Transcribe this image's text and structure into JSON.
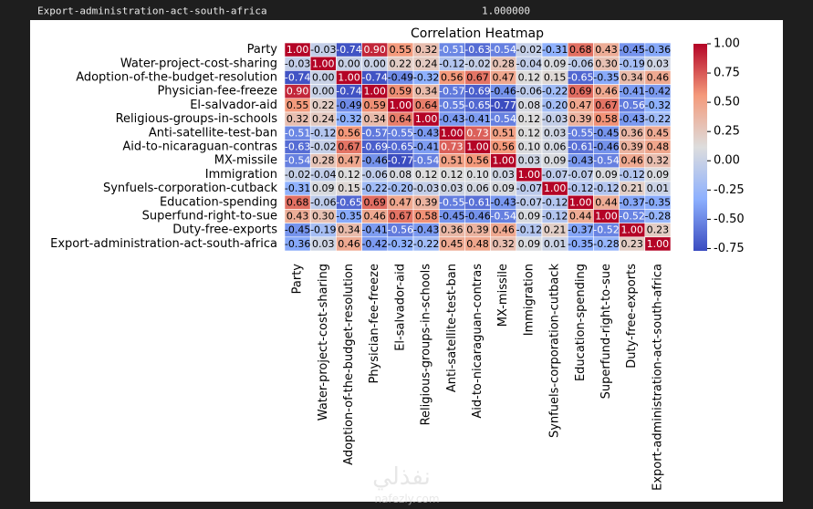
{
  "output_line": {
    "label": "Export-administration-act-south-africa",
    "value": "1.000000"
  },
  "watermark": {
    "arabic": "نفذلي",
    "latin": "nafezly.com"
  },
  "chart_data": {
    "type": "heatmap",
    "title": "Correlation Heatmap",
    "colormap": "coolwarm",
    "categories": [
      "Party",
      "Water-project-cost-sharing",
      "Adoption-of-the-budget-resolution",
      "Physician-fee-freeze",
      "El-salvador-aid",
      "Religious-groups-in-schools",
      "Anti-satellite-test-ban",
      "Aid-to-nicaraguan-contras",
      "MX-missile",
      "Immigration",
      "Synfuels-corporation-cutback",
      "Education-spending",
      "Superfund-right-to-sue",
      "Duty-free-exports",
      "Export-administration-act-south-africa"
    ],
    "values": [
      [
        1,
        -0.03,
        -0.74,
        0.9,
        0.55,
        0.32,
        -0.51,
        -0.63,
        -0.54,
        -0.02,
        -0.31,
        0.68,
        0.43,
        -0.45,
        -0.36
      ],
      [
        -0.03,
        1,
        0,
        0,
        0.22,
        0.24,
        -0.12,
        -0.02,
        0.28,
        -0.04,
        0.09,
        -0.06,
        0.3,
        -0.19,
        0.03
      ],
      [
        -0.74,
        0,
        1,
        -0.74,
        -0.49,
        -0.32,
        0.56,
        0.67,
        0.47,
        0.12,
        0.15,
        -0.65,
        -0.35,
        0.34,
        0.46
      ],
      [
        0.9,
        0,
        -0.74,
        1,
        0.59,
        0.34,
        -0.57,
        -0.69,
        -0.46,
        -0.06,
        -0.22,
        0.69,
        0.46,
        -0.41,
        -0.42
      ],
      [
        0.55,
        0.22,
        -0.49,
        0.59,
        1,
        0.64,
        -0.55,
        -0.65,
        -0.77,
        0.08,
        -0.2,
        0.47,
        0.67,
        -0.56,
        -0.32
      ],
      [
        0.32,
        0.24,
        -0.32,
        0.34,
        0.64,
        1,
        -0.43,
        -0.41,
        -0.54,
        0.12,
        -0.03,
        0.39,
        0.58,
        -0.43,
        -0.22
      ],
      [
        -0.51,
        -0.12,
        0.56,
        -0.57,
        -0.55,
        -0.43,
        1,
        0.73,
        0.51,
        0.12,
        0.03,
        -0.55,
        -0.45,
        0.36,
        0.45
      ],
      [
        -0.63,
        -0.02,
        0.67,
        -0.69,
        -0.65,
        -0.41,
        0.73,
        1,
        0.56,
        0.1,
        0.06,
        -0.61,
        -0.46,
        0.39,
        0.48
      ],
      [
        -0.54,
        0.28,
        0.47,
        -0.46,
        -0.77,
        -0.54,
        0.51,
        0.56,
        1,
        0.03,
        0.09,
        -0.43,
        -0.54,
        0.46,
        0.32
      ],
      [
        -0.02,
        -0.04,
        0.12,
        -0.06,
        0.08,
        0.12,
        0.12,
        0.1,
        0.03,
        1,
        -0.07,
        -0.07,
        0.09,
        -0.12,
        0.09
      ],
      [
        -0.31,
        0.09,
        0.15,
        -0.22,
        -0.2,
        -0.03,
        0.03,
        0.06,
        0.09,
        -0.07,
        1,
        -0.12,
        -0.12,
        0.21,
        0.01
      ],
      [
        0.68,
        -0.06,
        -0.65,
        0.69,
        0.47,
        0.39,
        -0.55,
        -0.61,
        -0.43,
        -0.07,
        -0.12,
        1,
        0.44,
        -0.37,
        -0.35
      ],
      [
        0.43,
        0.3,
        -0.35,
        0.46,
        0.67,
        0.58,
        -0.45,
        -0.46,
        -0.54,
        0.09,
        -0.12,
        0.44,
        1,
        -0.52,
        -0.28
      ],
      [
        -0.45,
        -0.19,
        0.34,
        -0.41,
        -0.56,
        -0.43,
        0.36,
        0.39,
        0.46,
        -0.12,
        0.21,
        -0.37,
        -0.52,
        1,
        0.23
      ],
      [
        -0.36,
        0.03,
        0.46,
        -0.42,
        -0.32,
        -0.22,
        0.45,
        0.48,
        0.32,
        0.09,
        0.01,
        -0.35,
        -0.28,
        0.23,
        1
      ]
    ],
    "value_labels": [
      [
        "1.00",
        "-0.03",
        "-0.74",
        "0.90",
        "0.55",
        "0.32",
        "-0.51",
        "-0.63",
        "-0.54",
        "-0.02",
        "-0.31",
        "0.68",
        "0.43",
        "-0.45",
        "-0.36"
      ],
      [
        "-0.03",
        "1.00",
        "0.00",
        "0.00",
        "0.22",
        "0.24",
        "-0.12",
        "-0.02",
        "0.28",
        "-0.04",
        "0.09",
        "-0.06",
        "0.30",
        "-0.19",
        "0.03"
      ],
      [
        "-0.74",
        "0.00",
        "1.00",
        "-0.74",
        "-0.49",
        "-0.32",
        "0.56",
        "0.67",
        "0.47",
        "0.12",
        "0.15",
        "-0.65",
        "-0.35",
        "0.34",
        "0.46"
      ],
      [
        "0.90",
        "0.00",
        "-0.74",
        "1.00",
        "0.59",
        "0.34",
        "-0.57",
        "-0.69",
        "-0.46",
        "-0.06",
        "-0.22",
        "0.69",
        "0.46",
        "-0.41",
        "-0.42"
      ],
      [
        "0.55",
        "0.22",
        "-0.49",
        "0.59",
        "1.00",
        "0.64",
        "-0.55",
        "-0.65",
        "-0.77",
        "0.08",
        "-0.20",
        "0.47",
        "0.67",
        "-0.56",
        "-0.32"
      ],
      [
        "0.32",
        "0.24",
        "-0.32",
        "0.34",
        "0.64",
        "1.00",
        "-0.43",
        "-0.41",
        "-0.54",
        "0.12",
        "-0.03",
        "0.39",
        "0.58",
        "-0.43",
        "-0.22"
      ],
      [
        "-0.51",
        "-0.12",
        "0.56",
        "-0.57",
        "-0.55",
        "-0.43",
        "1.00",
        "0.73",
        "0.51",
        "0.12",
        "0.03",
        "-0.55",
        "-0.45",
        "0.36",
        "0.45"
      ],
      [
        "-0.63",
        "-0.02",
        "0.67",
        "-0.69",
        "-0.65",
        "-0.41",
        "0.73",
        "1.00",
        "0.56",
        "0.10",
        "0.06",
        "-0.61",
        "-0.46",
        "0.39",
        "0.48"
      ],
      [
        "-0.54",
        "0.28",
        "0.47",
        "-0.46",
        "-0.77",
        "-0.54",
        "0.51",
        "0.56",
        "1.00",
        "0.03",
        "0.09",
        "-0.43",
        "-0.54",
        "0.46",
        "0.32"
      ],
      [
        "-0.02",
        "-0.04",
        "0.12",
        "-0.06",
        "0.08",
        "0.12",
        "0.12",
        "0.10",
        "0.03",
        "1.00",
        "-0.07",
        "-0.07",
        "0.09",
        "-0.12",
        "0.09"
      ],
      [
        "-0.31",
        "0.09",
        "0.15",
        "-0.22",
        "-0.20",
        "-0.03",
        "0.03",
        "0.06",
        "0.09",
        "-0.07",
        "1.00",
        "-0.12",
        "-0.12",
        "0.21",
        "0.01"
      ],
      [
        "0.68",
        "-0.06",
        "-0.65",
        "0.69",
        "0.47",
        "0.39",
        "-0.55",
        "-0.61",
        "-0.43",
        "-0.07",
        "-0.12",
        "1.00",
        "0.44",
        "-0.37",
        "-0.35"
      ],
      [
        "0.43",
        "0.30",
        "-0.35",
        "0.46",
        "0.67",
        "0.58",
        "-0.45",
        "-0.46",
        "-0.54",
        "0.09",
        "-0.12",
        "0.44",
        "1.00",
        "-0.52",
        "-0.28"
      ],
      [
        "-0.45",
        "-0.19",
        "0.34",
        "-0.41",
        "-0.56",
        "-0.43",
        "0.36",
        "0.39",
        "0.46",
        "-0.12",
        "0.21",
        "-0.37",
        "-0.52",
        "1.00",
        "0.23"
      ],
      [
        "-0.36",
        "0.03",
        "0.46",
        "-0.42",
        "-0.32",
        "-0.22",
        "0.45",
        "0.48",
        "0.32",
        "0.09",
        "0.01",
        "-0.35",
        "-0.28",
        "0.23",
        "1.00"
      ]
    ],
    "clim": [
      -0.77,
      1
    ],
    "cticks": [
      {
        "value": -0.75,
        "label": "-0.75"
      },
      {
        "value": -0.5,
        "label": "-0.50"
      },
      {
        "value": -0.25,
        "label": "-0.25"
      },
      {
        "value": 0,
        "label": "0.00"
      },
      {
        "value": 0.25,
        "label": "0.25"
      },
      {
        "value": 0.5,
        "label": "0.50"
      },
      {
        "value": 0.75,
        "label": "0.75"
      },
      {
        "value": 1,
        "label": "1.00"
      }
    ]
  }
}
